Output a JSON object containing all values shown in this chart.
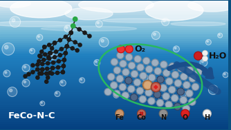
{
  "label_feco": "FeCo-N-C",
  "label_o2": "O₂",
  "label_h2o": "H₂O",
  "legend_labels": [
    "Fe",
    "Co",
    "N",
    "O",
    "H"
  ],
  "legend_colors": [
    "#c8956c",
    "#b86858",
    "#909090",
    "#dd2222",
    "#f5f5f5"
  ],
  "legend_edge_colors": [
    "#9a6840",
    "#8a4030",
    "#686868",
    "#aa1010",
    "#b0b0b0"
  ],
  "ellipse_color": "#28b860",
  "arrow_color": "#1a4e8a",
  "c_atom_light": "#a0b0c0",
  "c_atom_dark": "#4a6080",
  "c_bond_color": "#6080a0",
  "bg_sky_top": "#c8dce8",
  "bg_sky_bot": "#90c8e0",
  "bg_water_top": "#3090c8",
  "bg_water_bot": "#0a5080",
  "black_mol_color": "#1a1a1a",
  "green_atom_color": "#28a845",
  "o2_color_outer": "#cc1010",
  "o2_color_inner": "#ee3030",
  "h2o_o_color": "#cc2020",
  "h2o_h_color": "#f0f0f0",
  "h2o_h_edge": "#c0c0c0"
}
